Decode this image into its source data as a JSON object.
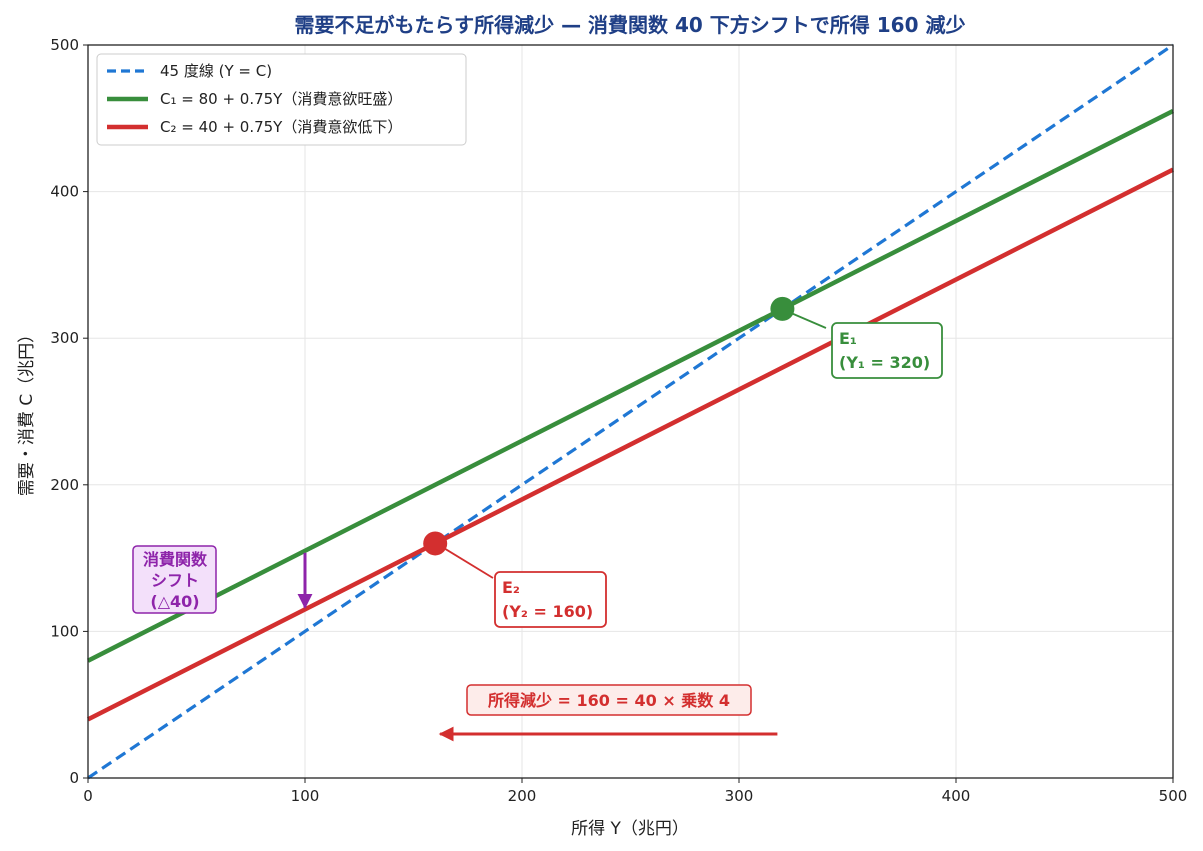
{
  "chart_data": {
    "type": "line",
    "title": "需要不足がもたらす所得減少 — 消費関数 40 下方シフトで所得 160 減少",
    "xlabel": "所得 Y（兆円）",
    "ylabel": "需要・消費 C（兆円）",
    "xlim": [
      0,
      500
    ],
    "ylim": [
      0,
      500
    ],
    "x_ticks": [
      0,
      100,
      200,
      300,
      400,
      500
    ],
    "y_ticks": [
      0,
      100,
      200,
      300,
      400,
      500
    ],
    "grid": true,
    "legend_position": "top-left",
    "series": [
      {
        "name": "45 度線 (Y = C)",
        "color": "#1f77d4",
        "style": "dashed",
        "x": [
          0,
          500
        ],
        "y": [
          0,
          500
        ]
      },
      {
        "name": "C₁ = 80 + 0.75Y（消費意欲旺盛）",
        "color": "#388e3c",
        "style": "solid",
        "x": [
          0,
          500
        ],
        "y": [
          80,
          455
        ]
      },
      {
        "name": "C₂ = 40 + 0.75Y（消費意欲低下）",
        "color": "#d32f2f",
        "style": "solid",
        "x": [
          0,
          500
        ],
        "y": [
          40,
          415
        ]
      }
    ],
    "points": [
      {
        "x": 320,
        "y": 320,
        "color": "#388e3c",
        "label_line1": "E₁",
        "label_line2": "(Y₁ = 320)"
      },
      {
        "x": 160,
        "y": 160,
        "color": "#d32f2f",
        "label_line1": "E₂",
        "label_line2": "(Y₂ = 160)"
      }
    ],
    "shift_annotation": {
      "lines": [
        "消費関数",
        "シフト",
        "(△40)"
      ],
      "x": 100,
      "from_y": 155,
      "to_y": 115,
      "color": "#8e24aa",
      "fill": "#f3e0fa"
    },
    "income_annotation": {
      "text": "所得減少 = 160 = 40 × 乗数 4",
      "from_x": 320,
      "to_x": 160,
      "y": 30,
      "color": "#d32f2f",
      "fill": "#fdecea"
    }
  }
}
